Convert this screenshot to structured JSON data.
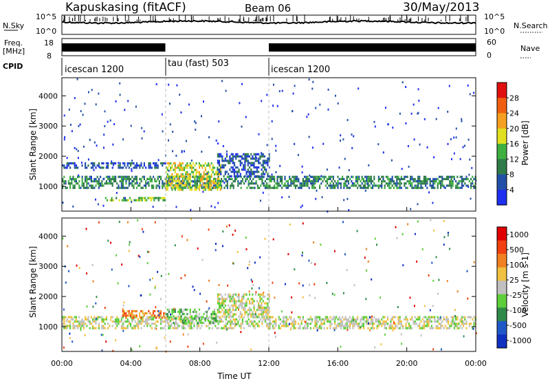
{
  "header": {
    "station": "Kapuskasing (fitACF)",
    "beam": "Beam 06",
    "date": "30/May/2013"
  },
  "noise_panel": {
    "left_label": "N.Sky",
    "right_label": "N.Search",
    "left_ticks": [
      "10^5",
      "10^0"
    ],
    "right_ticks": [
      "10^5",
      "10^0"
    ]
  },
  "freq_panel": {
    "left_label_1": "Freq.",
    "left_label_2": "[MHz]",
    "right_label": "Nave",
    "left_ticks": [
      "18",
      "8"
    ],
    "right_ticks": [
      "60",
      "0"
    ],
    "segments": [
      {
        "start_hour": 0.0,
        "end_hour": 6.0
      },
      {
        "start_hour": 12.0,
        "end_hour": 24.0
      }
    ]
  },
  "cpid": {
    "label": "CPID",
    "segments": [
      {
        "name": "icescan 1200",
        "start_hour": 0.0,
        "end_hour": 6.0
      },
      {
        "name": "tau (fast) 503",
        "start_hour": 6.0,
        "end_hour": 12.0
      },
      {
        "name": "icescan 1200",
        "start_hour": 12.0,
        "end_hour": 24.0
      }
    ]
  },
  "chart_data": [
    {
      "type": "heatmap",
      "quantity": "Power",
      "ylabel": "Slant Range [km]",
      "xlim": [
        0,
        24
      ],
      "ylim": [
        180,
        4600
      ],
      "yticks": [
        "1000",
        "2000",
        "3000",
        "4000"
      ],
      "colorbar_label": "Power [dB]",
      "colorbar_ticks": [
        "4",
        "8",
        "12",
        "16",
        "20",
        "24",
        "28"
      ],
      "colorbar_colors": [
        "#1f2ff0",
        "#2250a8",
        "#2e7a48",
        "#3fb040",
        "#e0e020",
        "#f5a020",
        "#f06010",
        "#e01010"
      ],
      "features": [
        {
          "label": "main-band",
          "start_hour": 0.0,
          "end_hour": 24.0,
          "range_km": [
            950,
            1350
          ],
          "level": 2
        },
        {
          "label": "upper-band",
          "start_hour": 0.0,
          "end_hour": 6.0,
          "range_km": [
            1600,
            1800
          ],
          "level": 1
        },
        {
          "label": "blob",
          "start_hour": 6.0,
          "end_hour": 9.2,
          "range_km": [
            900,
            1800
          ],
          "level": 4
        },
        {
          "label": "arc",
          "start_hour": 9.0,
          "end_hour": 12.0,
          "range_km": [
            1300,
            2100
          ],
          "level": 1
        },
        {
          "label": "lower-band",
          "start_hour": 2.5,
          "end_hour": 6.0,
          "range_km": [
            550,
            650
          ],
          "level": 3
        }
      ]
    },
    {
      "type": "heatmap",
      "quantity": "Velocity",
      "xlabel": "Time UT",
      "ylabel": "Slant Range [km]",
      "xlim": [
        0,
        24
      ],
      "ylim": [
        180,
        4600
      ],
      "xticks": [
        "00:00",
        "04:00",
        "08:00",
        "12:00",
        "16:00",
        "20:00",
        "00:00"
      ],
      "yticks": [
        "1000",
        "2000",
        "3000",
        "4000"
      ],
      "colorbar_label": "Velocity [m s-1]",
      "colorbar_ticks": [
        "1000",
        "500",
        "100",
        "25",
        "-25",
        "-100",
        "-500",
        "-1000"
      ],
      "colorbar_colors": [
        "#1030c0",
        "#2058c8",
        "#2f8a4a",
        "#5ccf3a",
        "#c0c0c0",
        "#f0c040",
        "#f08020",
        "#f04010",
        "#e00000"
      ],
      "features": [
        {
          "label": "main-band",
          "start_hour": 0.0,
          "end_hour": 24.0,
          "range_km": [
            950,
            1350
          ],
          "level": 4
        },
        {
          "label": "orange-patch",
          "start_hour": 3.5,
          "end_hour": 6.0,
          "range_km": [
            1300,
            1550
          ],
          "level": 6
        },
        {
          "label": "green-patch",
          "start_hour": 6.0,
          "end_hour": 9.0,
          "range_km": [
            1100,
            1600
          ],
          "level": 3
        },
        {
          "label": "arc",
          "start_hour": 9.0,
          "end_hour": 12.0,
          "range_km": [
            1300,
            2100
          ],
          "level": 4
        }
      ]
    }
  ]
}
